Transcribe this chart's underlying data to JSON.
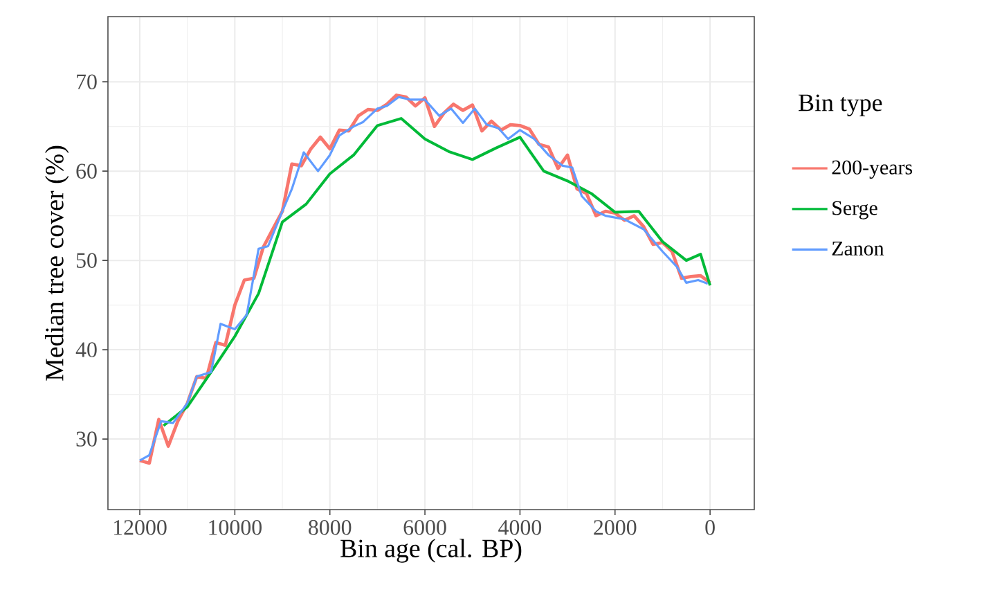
{
  "chart_data": {
    "type": "line",
    "xlabel": "Bin age (cal. BP)",
    "ylabel": "Median tree cover (%)",
    "legend_title": "Bin type",
    "xlim": [
      12670,
      -930
    ],
    "xticks": [
      12000,
      10000,
      8000,
      6000,
      4000,
      2000,
      0
    ],
    "ylim": [
      22.1,
      77.3
    ],
    "yticks": [
      30,
      40,
      50,
      60,
      70
    ],
    "grid": true,
    "legend": "right",
    "series": [
      {
        "name": "200-years",
        "color": "#f8766d",
        "x": [
          12000,
          11800,
          11600,
          11400,
          11200,
          11000,
          10800,
          10600,
          10400,
          10200,
          10000,
          9800,
          9600,
          9400,
          9200,
          9000,
          8800,
          8600,
          8400,
          8200,
          8000,
          7800,
          7600,
          7400,
          7200,
          7000,
          6800,
          6600,
          6400,
          6200,
          6000,
          5800,
          5600,
          5400,
          5200,
          5000,
          4800,
          4600,
          4400,
          4200,
          4000,
          3800,
          3600,
          3400,
          3200,
          3000,
          2800,
          2600,
          2400,
          2200,
          2000,
          1800,
          1600,
          1400,
          1200,
          1000,
          800,
          600,
          400,
          200,
          0
        ],
        "values": [
          27.6,
          27.3,
          32.2,
          29.2,
          32.0,
          34.0,
          37.0,
          36.8,
          40.8,
          40.5,
          45.0,
          47.8,
          48.0,
          51.5,
          53.5,
          55.5,
          60.8,
          60.6,
          62.5,
          63.8,
          62.5,
          64.6,
          64.5,
          66.2,
          66.9,
          66.8,
          67.5,
          68.5,
          68.3,
          67.3,
          68.2,
          65.0,
          66.5,
          67.5,
          66.8,
          67.4,
          64.5,
          65.6,
          64.6,
          65.2,
          65.1,
          64.7,
          63.0,
          62.7,
          60.3,
          61.8,
          58.0,
          57.5,
          55.0,
          55.5,
          55.3,
          54.5,
          55.0,
          53.8,
          51.8,
          52.0,
          51.0,
          48.0,
          48.2,
          48.3,
          47.5
        ]
      },
      {
        "name": "Serge",
        "color": "#00ba38",
        "x": [
          11500,
          11000,
          10500,
          10000,
          9500,
          9000,
          8500,
          8000,
          7500,
          7000,
          6500,
          6000,
          5500,
          5000,
          4500,
          4000,
          3500,
          3000,
          2500,
          2000,
          1500,
          1000,
          500,
          200,
          0
        ],
        "values": [
          31.5,
          33.6,
          37.5,
          41.5,
          46.3,
          54.3,
          56.3,
          59.7,
          61.8,
          65.1,
          65.9,
          63.6,
          62.2,
          61.3,
          62.6,
          63.8,
          60.0,
          58.9,
          57.5,
          55.4,
          55.5,
          52.1,
          50.0,
          50.7,
          47.2
        ]
      },
      {
        "name": "Zanon",
        "color": "#619cff",
        "x": [
          12000,
          11800,
          11550,
          11300,
          11000,
          10800,
          10500,
          10300,
          10000,
          9750,
          9500,
          9300,
          9000,
          8800,
          8550,
          8250,
          8000,
          7800,
          7500,
          7300,
          7000,
          6800,
          6550,
          6300,
          6000,
          5700,
          5450,
          5200,
          4950,
          4700,
          4450,
          4250,
          4000,
          3700,
          3400,
          3100,
          2900,
          2700,
          2400,
          2200,
          1800,
          1400,
          1000,
          700,
          500,
          250,
          50
        ],
        "values": [
          27.6,
          28.2,
          32.0,
          31.8,
          34.0,
          37.0,
          37.5,
          42.9,
          42.3,
          43.9,
          51.3,
          51.6,
          55.5,
          58.0,
          62.1,
          60.0,
          61.8,
          64.0,
          65.0,
          65.5,
          67.0,
          67.3,
          68.3,
          68.0,
          68.0,
          66.2,
          67.0,
          65.4,
          67.0,
          65.2,
          64.8,
          63.6,
          64.6,
          63.6,
          61.8,
          60.6,
          60.4,
          57.2,
          55.5,
          55.0,
          54.6,
          53.5,
          51.0,
          49.3,
          47.5,
          47.8,
          47.4
        ]
      }
    ]
  }
}
